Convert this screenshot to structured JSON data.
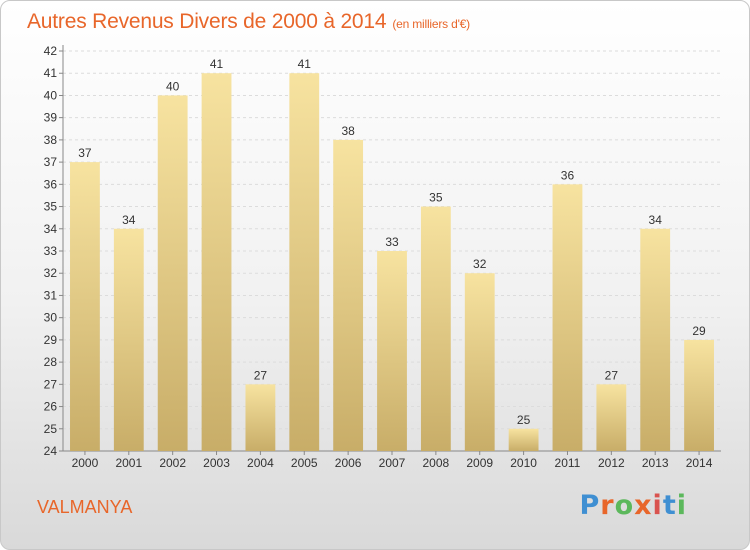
{
  "title": "Autres Revenus Divers de 2000 à 2014",
  "subtitle": "(en milliers d'€)",
  "place": "VALMANYA",
  "logo": "Proxiti",
  "colors": {
    "title": "#e8662a",
    "bar_light": "#f7e3a0",
    "bar_dark": "#c8ad68"
  },
  "chart_data": {
    "type": "bar",
    "categories": [
      "2000",
      "2001",
      "2002",
      "2003",
      "2004",
      "2005",
      "2006",
      "2007",
      "2008",
      "2009",
      "2010",
      "2011",
      "2012",
      "2013",
      "2014"
    ],
    "values": [
      37,
      34,
      40,
      41,
      27,
      41,
      38,
      33,
      35,
      32,
      25,
      36,
      27,
      34,
      29
    ],
    "ylim": [
      24,
      42
    ],
    "yticks": [
      24,
      25,
      26,
      27,
      28,
      29,
      30,
      31,
      32,
      33,
      34,
      35,
      36,
      37,
      38,
      39,
      40,
      41,
      42
    ],
    "grid": true
  }
}
